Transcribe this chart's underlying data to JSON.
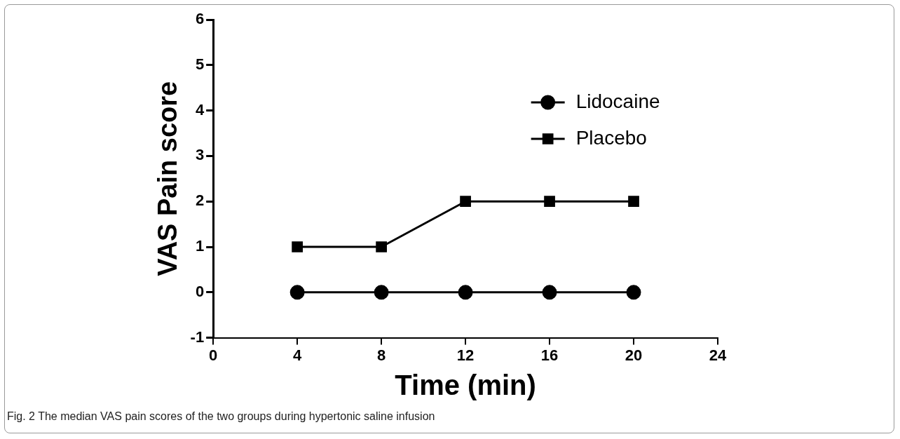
{
  "chart_data": {
    "type": "line",
    "xlabel": "Time (min)",
    "ylabel": "VAS Pain score",
    "x": [
      4,
      8,
      12,
      16,
      20
    ],
    "series": [
      {
        "name": "Lidocaine",
        "color": "#000000",
        "marker": "circle",
        "values": [
          0,
          0,
          0,
          0,
          0
        ]
      },
      {
        "name": "Placebo",
        "color": "#000000",
        "marker": "square",
        "values": [
          1,
          1,
          2,
          2,
          2
        ]
      }
    ],
    "xlim": [
      0,
      24
    ],
    "xticks": [
      0,
      4,
      8,
      12,
      16,
      20,
      24
    ],
    "ylim": [
      -1,
      6
    ],
    "yticks": [
      -1,
      0,
      1,
      2,
      3,
      4,
      5,
      6
    ],
    "grid": false,
    "legend": "top right",
    "line_style": "solid",
    "annotations": [
      "Fig. 2 The median VAS pain scores of the two groups during hypertonic saline infusion"
    ]
  }
}
